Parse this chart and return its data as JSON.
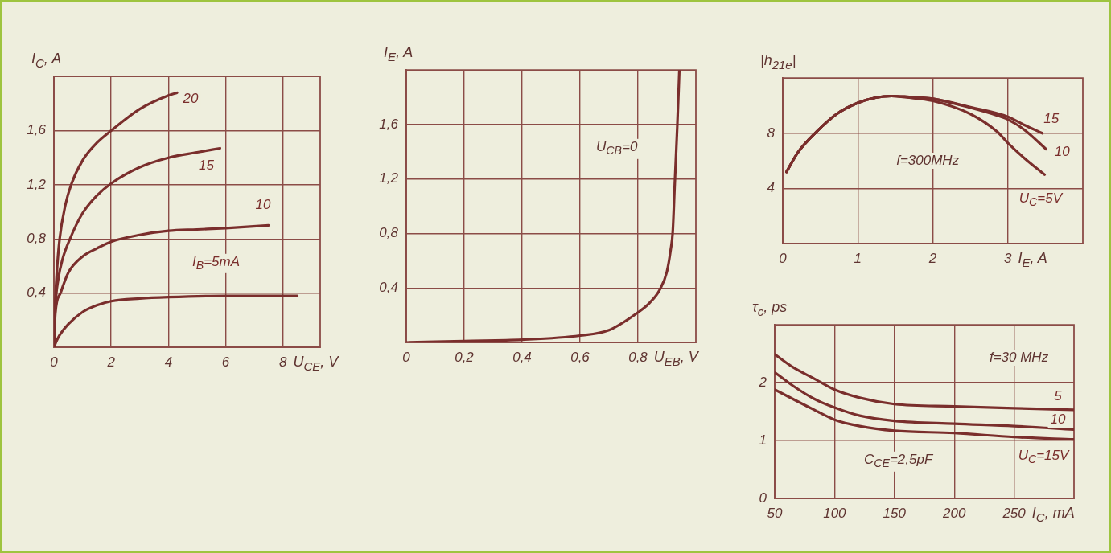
{
  "chart_data": [
    {
      "type": "line",
      "xlabel": "U$_{CE}$, V",
      "ylabel": "I$_{C}$, A",
      "xlim": [
        0,
        9.3
      ],
      "ylim": [
        0,
        2
      ],
      "xticks": [
        0,
        2,
        4,
        6,
        8
      ],
      "yticks": [
        {
          "value": 0.4,
          "label": "0,4"
        },
        {
          "value": 0.8,
          "label": "0,8"
        },
        {
          "value": 1.2,
          "label": "1,2"
        },
        {
          "value": 1.6,
          "label": "1,6"
        }
      ],
      "grid": true,
      "series": [
        {
          "name": "20",
          "color": "#7a2e2c",
          "x": [
            0,
            0.05,
            0.1,
            0.2,
            0.4,
            0.6,
            1,
            1.5,
            2,
            3,
            4,
            4.3
          ],
          "values": [
            0,
            0.35,
            0.55,
            0.8,
            1.05,
            1.2,
            1.38,
            1.51,
            1.6,
            1.76,
            1.86,
            1.88
          ]
        },
        {
          "name": "15",
          "color": "#7a2e2c",
          "x": [
            0,
            0.05,
            0.15,
            0.3,
            0.56,
            1,
            1.5,
            2,
            3,
            4,
            5,
            5.8
          ],
          "values": [
            0,
            0.3,
            0.5,
            0.65,
            0.8,
            0.99,
            1.12,
            1.21,
            1.33,
            1.4,
            1.44,
            1.47
          ]
        },
        {
          "name": "10",
          "color": "#7a2e2c",
          "x": [
            0,
            0.05,
            0.23,
            0.5,
            1,
            1.5,
            2,
            3,
            4,
            5,
            6,
            7.5
          ],
          "values": [
            0,
            0.25,
            0.4,
            0.55,
            0.67,
            0.73,
            0.78,
            0.83,
            0.86,
            0.87,
            0.88,
            0.9
          ]
        },
        {
          "name": "I$_{B}$=5mA",
          "color": "#7a2e2c",
          "x": [
            0,
            0.1,
            0.2,
            0.5,
            1,
            1.5,
            2,
            3,
            4,
            6,
            8,
            8.5
          ],
          "values": [
            0,
            0.05,
            0.09,
            0.17,
            0.26,
            0.31,
            0.34,
            0.36,
            0.37,
            0.38,
            0.38,
            0.38
          ]
        }
      ]
    },
    {
      "type": "line",
      "xlabel": "U$_{EB}$, V",
      "ylabel": "I$_{E}$, A",
      "xlim": [
        0,
        1
      ],
      "ylim": [
        0,
        2
      ],
      "xticks": [
        0,
        {
          "value": 0.2,
          "label": "0,2"
        },
        {
          "value": 0.4,
          "label": "0,4"
        },
        {
          "value": 0.6,
          "label": "0,6"
        },
        {
          "value": 0.8,
          "label": "0,8"
        }
      ],
      "yticks": [
        {
          "value": 0.4,
          "label": "0,4"
        },
        {
          "value": 0.8,
          "label": "0,8"
        },
        {
          "value": 1.2,
          "label": "1,2"
        },
        {
          "value": 1.6,
          "label": "1,6"
        }
      ],
      "grid": true,
      "annotations": [
        "U$_{CB}$=0"
      ],
      "series": [
        {
          "color": "#7a2e2c",
          "x": [
            0,
            0.2,
            0.4,
            0.6,
            0.7,
            0.8,
            0.84,
            0.876,
            0.9,
            0.913,
            0.92,
            0.927,
            0.936,
            0.943
          ],
          "values": [
            0,
            0.01,
            0.02,
            0.05,
            0.09,
            0.22,
            0.29,
            0.39,
            0.52,
            0.68,
            0.81,
            1.16,
            1.6,
            2
          ]
        }
      ]
    },
    {
      "type": "line",
      "xlabel": "I$_{E}$, A",
      "ylabel": "|h$_{21e}$|",
      "xlim": [
        0,
        4
      ],
      "ylim": [
        0,
        12
      ],
      "xticks": [
        0,
        1,
        2,
        3
      ],
      "yticks": [
        4,
        8
      ],
      "grid": true,
      "annotations": [
        "f=300MHz"
      ],
      "series": [
        {
          "name": "15",
          "color": "#7a2e2c",
          "x": [
            0.05,
            0.2,
            0.43,
            0.72,
            1,
            1.25,
            1.45,
            1.65,
            2,
            2.5,
            3,
            3.22,
            3.46
          ],
          "values": [
            5.2,
            6.6,
            8,
            9.4,
            10.2,
            10.6,
            10.7,
            10.65,
            10.5,
            9.9,
            9.2,
            8.6,
            8
          ]
        },
        {
          "name": "10",
          "color": "#7a2e2c",
          "x": [
            0.05,
            0.2,
            0.43,
            0.72,
            1,
            1.25,
            1.45,
            1.65,
            2,
            2.5,
            2.85,
            3,
            3.22,
            3.51
          ],
          "values": [
            5.2,
            6.6,
            8,
            9.4,
            10.2,
            10.6,
            10.7,
            10.65,
            10.5,
            9.85,
            9.3,
            9,
            8.25,
            6.85
          ]
        },
        {
          "name": "U$_{C}$=5V",
          "color": "#7a2e2c",
          "x": [
            0.05,
            0.2,
            0.43,
            0.72,
            1,
            1.25,
            1.45,
            1.65,
            2,
            2.5,
            2.86,
            3,
            3.22,
            3.49
          ],
          "values": [
            5.2,
            6.6,
            8,
            9.4,
            10.2,
            10.6,
            10.7,
            10.6,
            10.35,
            9.4,
            8.1,
            7.3,
            6.2,
            5
          ]
        }
      ]
    },
    {
      "type": "line",
      "xlabel": "I$_{C}$, mA",
      "ylabel": "τ$_{c}$, ps",
      "xlim": [
        50,
        300
      ],
      "ylim": [
        0,
        3
      ],
      "xticks": [
        50,
        100,
        150,
        200,
        250
      ],
      "yticks": [
        0,
        1,
        2
      ],
      "grid": true,
      "annotations": [
        "f=30 MHz",
        "C$_{CE}$=2,5pF"
      ],
      "series": [
        {
          "name": "5",
          "color": "#7a2e2c",
          "x": [
            50,
            65,
            83,
            100,
            121,
            150,
            200,
            250,
            300
          ],
          "values": [
            2.49,
            2.27,
            2.07,
            1.88,
            1.74,
            1.63,
            1.59,
            1.56,
            1.53
          ]
        },
        {
          "name": "10",
          "color": "#7a2e2c",
          "x": [
            50,
            65,
            83,
            100,
            121,
            150,
            200,
            250,
            300
          ],
          "values": [
            2.18,
            1.95,
            1.72,
            1.57,
            1.43,
            1.34,
            1.29,
            1.25,
            1.19
          ]
        },
        {
          "name": "U$_{C}$=15V",
          "color": "#7a2e2c",
          "x": [
            50,
            65,
            83,
            100,
            121,
            150,
            200,
            250,
            300
          ],
          "values": [
            1.88,
            1.72,
            1.53,
            1.36,
            1.25,
            1.17,
            1.13,
            1.06,
            1.02
          ]
        }
      ]
    }
  ]
}
